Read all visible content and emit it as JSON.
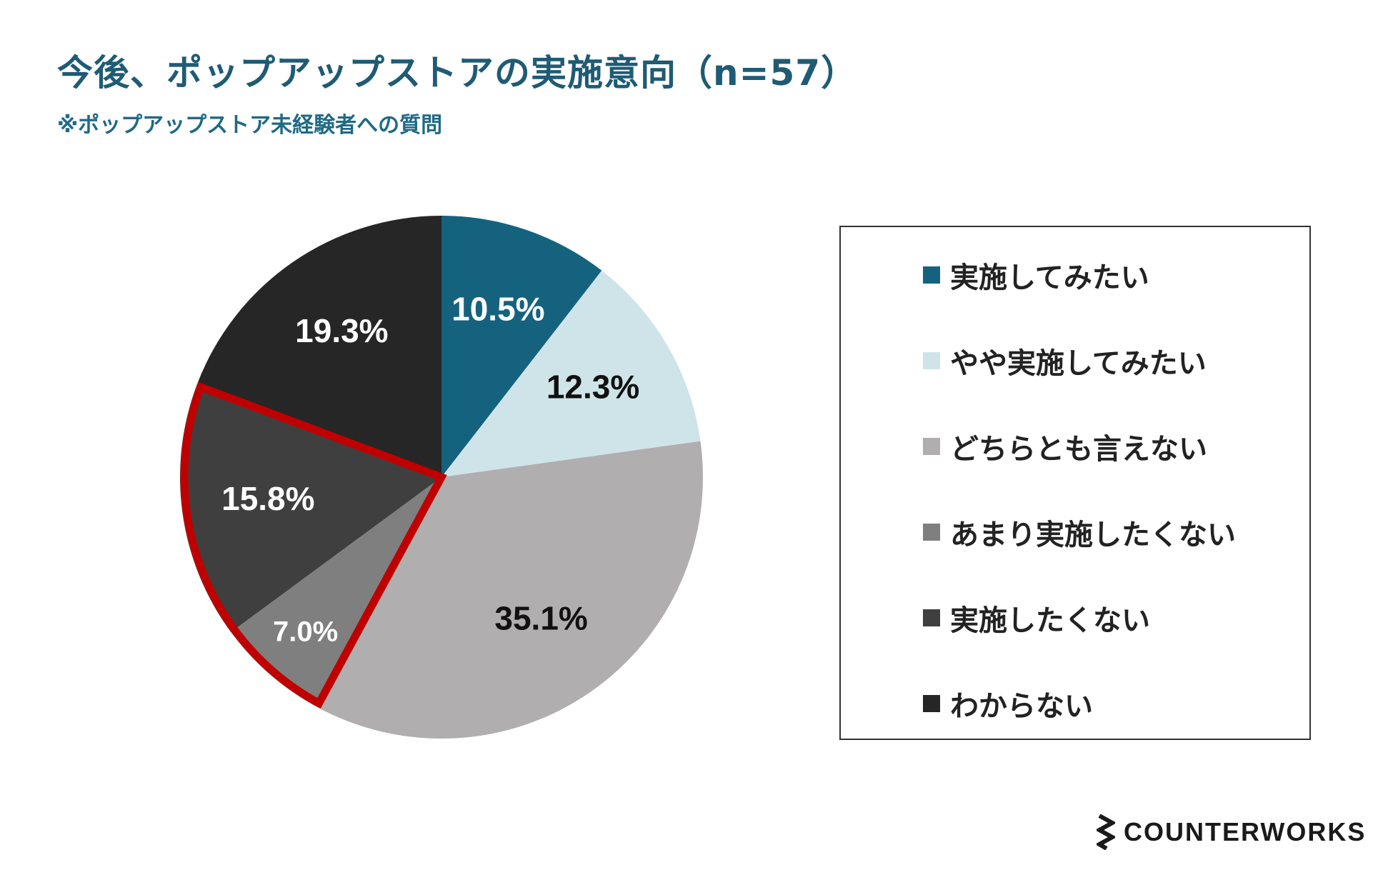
{
  "chart_data": {
    "type": "pie",
    "title": "今後、ポップアップストアの実施意向（n=57）",
    "subtitle": "※ポップアップストア未経験者への質問",
    "slices": [
      {
        "label": "実施してみたい",
        "value": 10.5,
        "display": "10.5%",
        "color": "#15627f",
        "text_color": "#ffffff",
        "highlight": false
      },
      {
        "label": "やや実施してみたい",
        "value": 12.3,
        "display": "12.3%",
        "color": "#cfe4e9",
        "text_color": "#111111",
        "highlight": false
      },
      {
        "label": "どちらとも言えない",
        "value": 35.1,
        "display": "35.1%",
        "color": "#b0aeae",
        "text_color": "#111111",
        "highlight": false
      },
      {
        "label": "あまり実施したくない",
        "value": 7.0,
        "display": "7.0%",
        "color": "#7f7f7f",
        "text_color": "#ffffff",
        "highlight": true
      },
      {
        "label": "実施したくない",
        "value": 15.8,
        "display": "15.8%",
        "color": "#3f3f3f",
        "text_color": "#ffffff",
        "highlight": true
      },
      {
        "label": "わからない",
        "value": 19.3,
        "display": "19.3%",
        "color": "#262626",
        "text_color": "#ffffff",
        "highlight": false
      }
    ],
    "highlight_color": "#c00000",
    "legend_position": "right"
  },
  "brand": {
    "name": "COUNTERWORKS"
  }
}
